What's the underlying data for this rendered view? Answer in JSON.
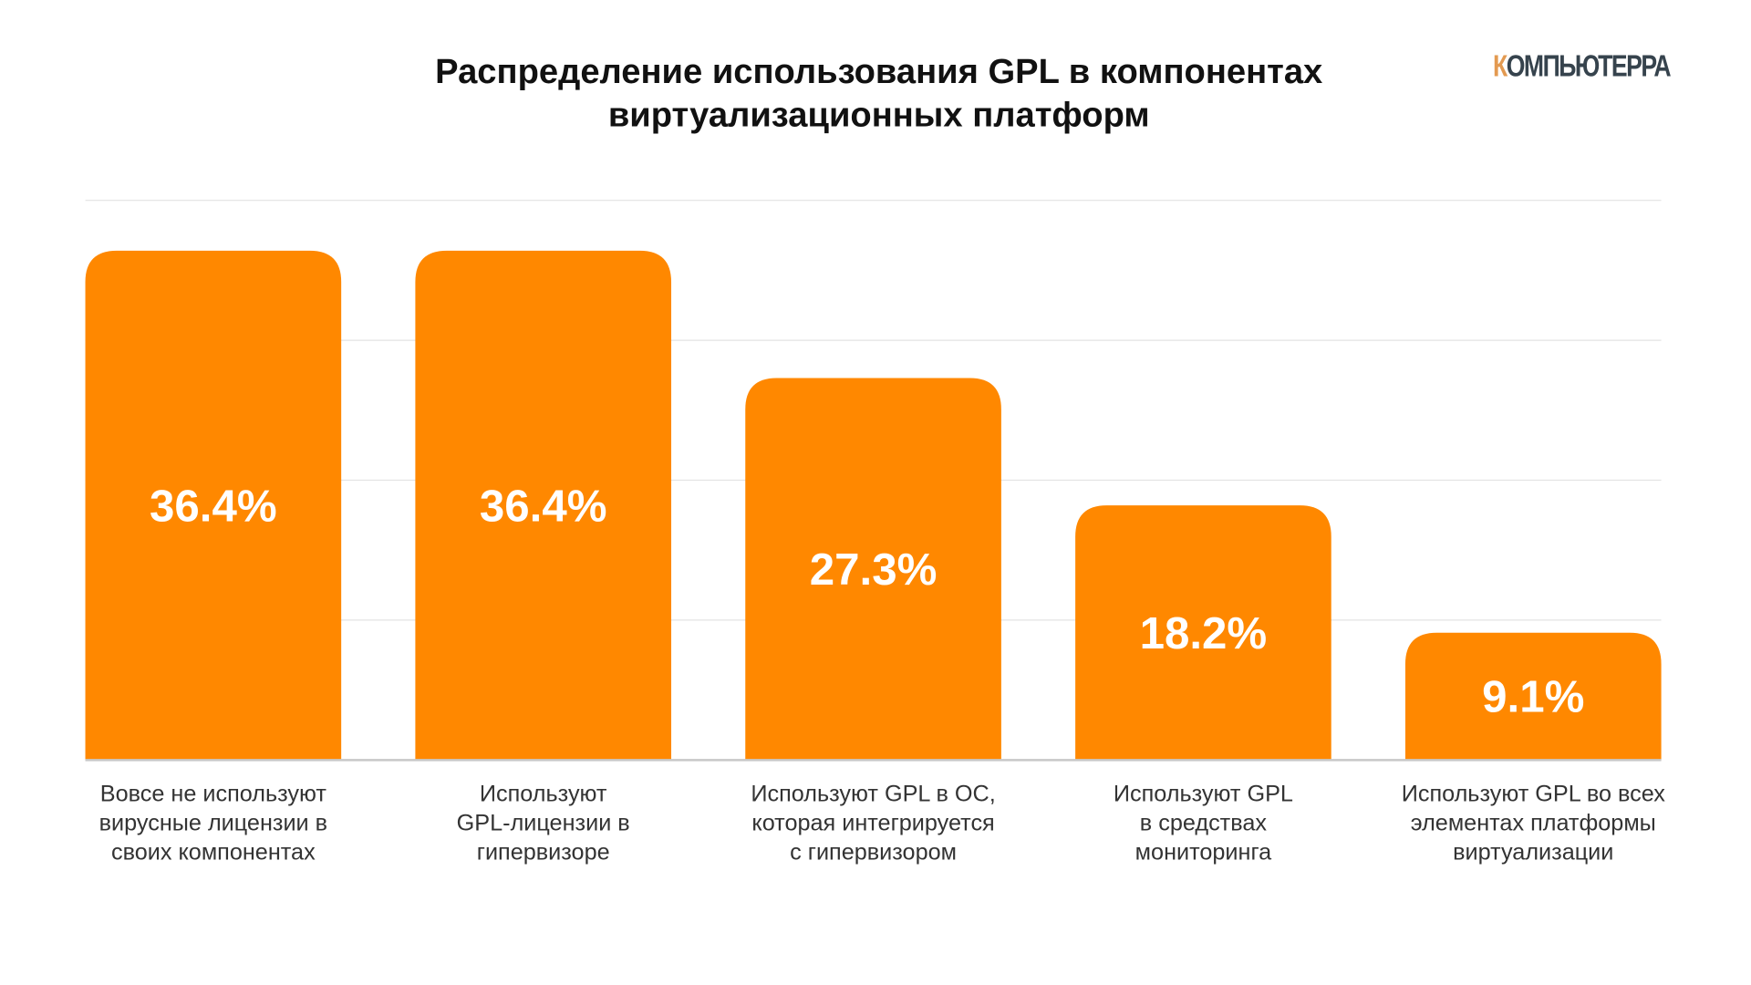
{
  "chart_data": {
    "type": "bar",
    "title": "Распределение использования GPL в компонентах виртуализационных платформ",
    "title_lines": [
      "Распределение использования GPL в компонентах",
      "виртуализационных платформ"
    ],
    "categories": [
      "Вовсе не используют\nвирусные лицензии в\nсвоих компонентах",
      "Используют\nGPL-лицензии в\nгипервизоре",
      "Используют GPL в ОС,\nкоторая интегрируется\nс гипервизором",
      "Используют GPL\nв средствах\nмониторинга",
      "Используют GPL во всех\nэлементах платформы\nвиртуализации"
    ],
    "values": [
      36.4,
      36.4,
      27.3,
      18.2,
      9.1
    ],
    "value_labels": [
      "36.4%",
      "36.4%",
      "27.3%",
      "18.2%",
      "9.1%"
    ],
    "ylim": [
      0,
      40
    ],
    "yticks": [
      0,
      10,
      20,
      30,
      40
    ],
    "grid": true,
    "xlabel": "",
    "ylabel": "",
    "bar_color": "#ff8800"
  },
  "logo": {
    "first": "К",
    "rest": "ОМПЬЮТЕРРА",
    "accent": "#e39a51",
    "color": "#36434d"
  }
}
